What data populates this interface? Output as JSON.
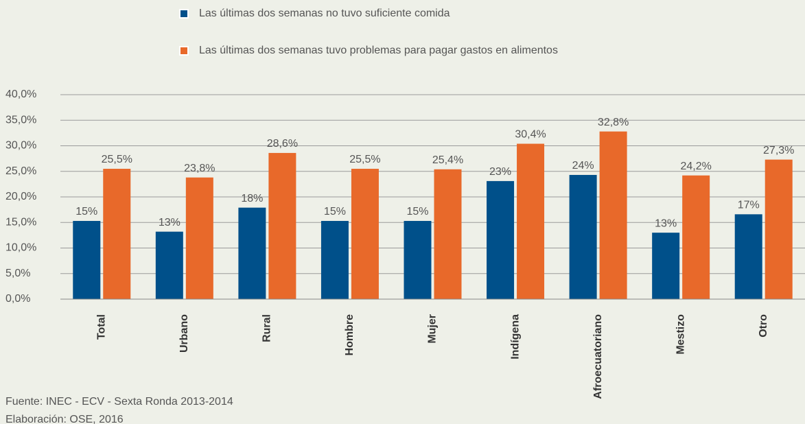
{
  "chart_data": {
    "type": "bar",
    "categories": [
      "Total",
      "Urbano",
      "Rural",
      "Hombre",
      "Mujer",
      "Indígena",
      "Afroecuatoriano",
      "Mestizo",
      "Otro"
    ],
    "series": [
      {
        "name": "Las últimas dos semanas no tuvo suficiente comida",
        "color": "#00508a",
        "values": [
          15.3,
          13.2,
          17.9,
          15.3,
          15.3,
          23.1,
          24.3,
          13.0,
          16.6
        ],
        "value_labels": [
          "15%",
          "13%",
          "18%",
          "15%",
          "15%",
          "23%",
          "24%",
          "13%",
          "17%"
        ]
      },
      {
        "name": "Las últimas dos semanas tuvo problemas para pagar gastos en alimentos",
        "color": "#e8692a",
        "values": [
          25.5,
          23.8,
          28.6,
          25.5,
          25.4,
          30.4,
          32.8,
          24.2,
          27.3
        ],
        "value_labels": [
          "25,5%",
          "23,8%",
          "28,6%",
          "25,5%",
          "25,4%",
          "30,4%",
          "32,8%",
          "24,2%",
          "27,3%"
        ]
      }
    ],
    "ylim": [
      0,
      40
    ],
    "yticks": [
      {
        "value": 0,
        "label": "0,0%"
      },
      {
        "value": 5,
        "label": "5,0%"
      },
      {
        "value": 10,
        "label": "10,0%"
      },
      {
        "value": 15,
        "label": "15,0%"
      },
      {
        "value": 20,
        "label": "20,0%"
      },
      {
        "value": 25,
        "label": "25,0%"
      },
      {
        "value": 30,
        "label": "30,0%"
      },
      {
        "value": 35,
        "label": "35,0%"
      },
      {
        "value": 40,
        "label": "40,0%"
      }
    ],
    "grid": true,
    "notes": [
      "Fuente: INEC - ECV  - Sexta Ronda 2013-2014",
      "Elaboración: OSE, 2016"
    ]
  }
}
